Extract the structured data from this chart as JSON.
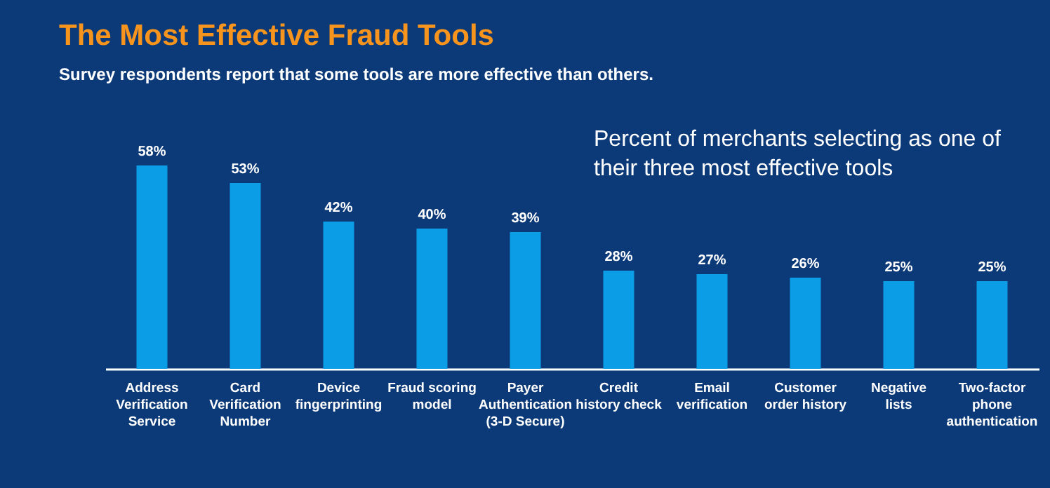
{
  "chart_data": {
    "type": "bar",
    "title": "The Most Effective Fraud Tools",
    "subtitle": "Survey respondents report that some tools are more effective than others.",
    "annotations": [
      "Percent of merchants selecting as one of their three most effective tools"
    ],
    "categories": [
      "Address Verification Service",
      "Card Verification Number",
      "Device fingerprinting",
      "Fraud scoring model",
      "Payer Authentication (3-D Secure)",
      "Credit history check",
      "Email verification",
      "Customer order history",
      "Negative lists",
      "Two-factor phone authentication"
    ],
    "values": [
      58,
      53,
      42,
      40,
      39,
      28,
      27,
      26,
      25,
      25
    ],
    "value_labels": [
      "58%",
      "53%",
      "42%",
      "40%",
      "39%",
      "28%",
      "27%",
      "26%",
      "25%",
      "25%"
    ],
    "color": "#0b9ee6",
    "grid": false
  }
}
